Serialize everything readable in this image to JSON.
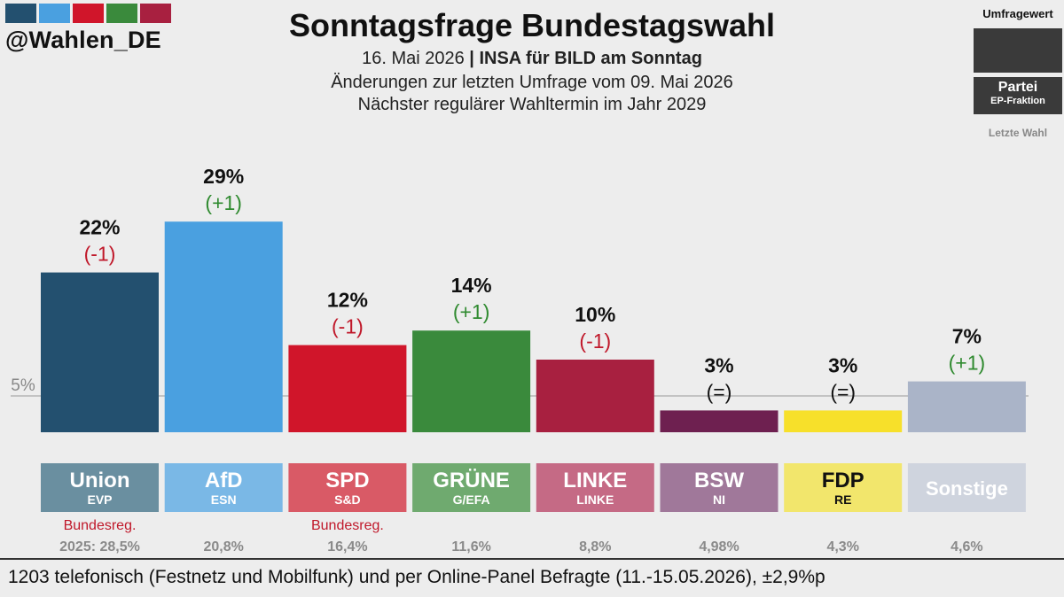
{
  "handle": "@Wahlen_DE",
  "brand_colors": [
    "#23506f",
    "#4aa0e0",
    "#d0152a",
    "#3a8a3c",
    "#a82040"
  ],
  "title": "Sonntagsfrage Bundestagswahl",
  "subtitle_date": "16. Mai 2026",
  "subtitle_sep": " | ",
  "subtitle_pollster": "INSA für BILD am Sonntag",
  "subtitle_changes": "Änderungen zur letzten Umfrage vom 09. Mai 2026",
  "subtitle_next": "Nächster regulärer Wahltermin im Jahr 2029",
  "legend": {
    "value_label": "Umfragewert",
    "party_label": "Partei",
    "faction_label": "EP-Fraktion",
    "last_label": "Letzte Wahl"
  },
  "footer": "1203 telefonisch (Festnetz und Mobilfunk) und per Online-Panel Befragte (11.-15.05.2026), ±2,9%p",
  "chart_data": {
    "type": "bar",
    "threshold": 5,
    "threshold_label": "5%",
    "categories": [
      "Union",
      "AfD",
      "SPD",
      "GRÜNE",
      "LINKE",
      "BSW",
      "FDP",
      "Sonstige"
    ],
    "factions": [
      "EVP",
      "ESN",
      "S&D",
      "G/EFA",
      "LINKE",
      "NI",
      "RE",
      ""
    ],
    "values": [
      22,
      29,
      12,
      14,
      10,
      3,
      3,
      7
    ],
    "value_labels": [
      "22%",
      "29%",
      "12%",
      "14%",
      "10%",
      "3%",
      "3%",
      "7%"
    ],
    "changes": [
      "(-1)",
      "(+1)",
      "(-1)",
      "(+1)",
      "(-1)",
      "(=)",
      "(=)",
      "(+1)"
    ],
    "change_signs": [
      "neg",
      "pos",
      "neg",
      "pos",
      "neg",
      "eq",
      "eq",
      "pos"
    ],
    "government": [
      "Bundesreg.",
      "",
      "Bundesreg.",
      "",
      "",
      "",
      "",
      ""
    ],
    "last_election": [
      "2025: 28,5%",
      "20,8%",
      "16,4%",
      "11,6%",
      "8,8%",
      "4,98%",
      "4,3%",
      "4,6%"
    ],
    "bar_colors": [
      "#23506f",
      "#4aa0e0",
      "#d0152a",
      "#3a8a3c",
      "#a82040",
      "#6e2050",
      "#f7e02a",
      "#aab4c8"
    ],
    "label_colors": [
      "#6a8fa0",
      "#7ab8e6",
      "#d95a66",
      "#6faa6f",
      "#c56a85",
      "#a0789a",
      "#f2e66c",
      "#cfd4de"
    ]
  }
}
